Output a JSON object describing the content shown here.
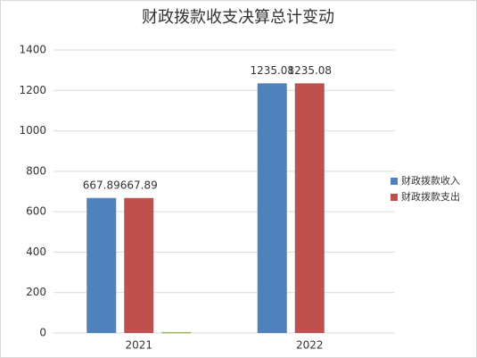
{
  "chart_data": {
    "type": "bar",
    "title": "财政拨款收支决算总计变动",
    "categories": [
      "2021",
      "2022"
    ],
    "series": [
      {
        "name": "财政拨款收入",
        "color": "#4f81bd",
        "values": [
          667.89,
          1235.08
        ]
      },
      {
        "name": "财政拨款支出",
        "color": "#c0504d",
        "values": [
          667.89,
          1235.08
        ]
      },
      {
        "color": "#9bbb59",
        "values": [
          5,
          null
        ]
      }
    ],
    "ylim": [
      0,
      1400
    ],
    "yticks": [
      0,
      200,
      400,
      600,
      800,
      1000,
      1200,
      1400
    ],
    "grid": true,
    "legend": "right"
  }
}
